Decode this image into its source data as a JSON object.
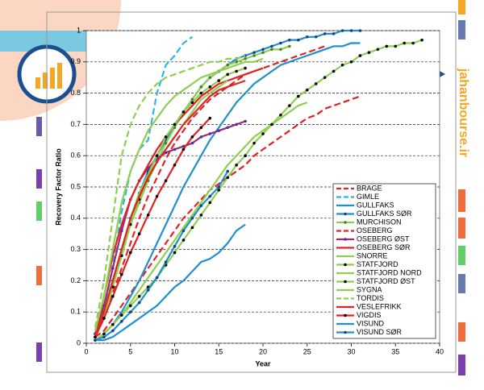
{
  "watermark": "jahanbourse.ir",
  "chart_data": {
    "type": "line",
    "x_label": "Year",
    "y_label": "Recovery Factor Ratio",
    "xlim": [
      0,
      40
    ],
    "xticks": [
      0,
      5,
      10,
      15,
      20,
      25,
      30,
      35,
      40
    ],
    "ylim": [
      0,
      1
    ],
    "yticks": [
      0,
      0.1,
      0.2,
      0.3,
      0.4,
      0.5,
      0.6,
      0.7,
      0.8,
      0.9,
      1
    ],
    "grid": true,
    "legend": "lower right",
    "x": [
      1,
      2,
      3,
      4,
      5,
      6,
      7,
      8,
      9,
      10,
      11,
      12,
      13,
      14,
      15,
      16,
      17,
      18,
      19,
      20,
      21,
      22,
      23,
      24,
      25,
      26,
      27,
      28,
      29,
      30,
      31,
      32,
      33,
      34,
      35,
      36,
      37,
      38
    ],
    "series": [
      {
        "name": "BRAGE",
        "color": "#e02424",
        "line_style": "dashed",
        "marker": false,
        "values": [
          0.02,
          0.04,
          0.08,
          0.12,
          0.16,
          0.2,
          0.24,
          0.28,
          0.32,
          0.36,
          0.4,
          0.43,
          0.46,
          0.49,
          0.51,
          0.53,
          0.55,
          0.57,
          0.6,
          0.62,
          0.64,
          0.66,
          0.68,
          0.7,
          0.72,
          0.73,
          0.75,
          0.76,
          0.77,
          0.78,
          0.79,
          null,
          null,
          null,
          null,
          null,
          null,
          null
        ]
      },
      {
        "name": "GIMLE",
        "color": "#2bb5e8",
        "line_style": "dashed",
        "marker": false,
        "values": [
          0.02,
          0.1,
          0.25,
          0.42,
          0.55,
          0.62,
          0.65,
          0.8,
          0.89,
          0.92,
          0.96,
          0.98,
          null,
          null,
          null,
          null,
          null,
          null,
          null,
          null,
          null,
          null,
          null,
          null,
          null,
          null,
          null,
          null,
          null,
          null,
          null,
          null,
          null,
          null,
          null,
          null,
          null,
          null
        ]
      },
      {
        "name": "GULLFAKS",
        "color": "#1e90d0",
        "line_style": "solid",
        "marker": false,
        "values": [
          0.01,
          0.03,
          0.06,
          0.1,
          0.15,
          0.2,
          0.26,
          0.32,
          0.38,
          0.44,
          0.5,
          0.55,
          0.6,
          0.65,
          0.69,
          0.73,
          0.77,
          0.8,
          0.83,
          0.85,
          0.87,
          0.89,
          0.9,
          0.91,
          0.92,
          0.93,
          0.94,
          0.95,
          0.95,
          0.96,
          0.96,
          null,
          null,
          null,
          null,
          null,
          null,
          null
        ]
      },
      {
        "name": "GULLFAKS SØR",
        "color": "#1e90d0",
        "line_style": "solid",
        "marker": true,
        "marker_color": "#1f3f7f",
        "values": [
          0.02,
          0.1,
          0.2,
          0.3,
          0.4,
          0.48,
          0.55,
          0.6,
          0.65,
          0.7,
          0.74,
          0.78,
          0.82,
          0.85,
          0.87,
          0.89,
          0.91,
          0.92,
          0.93,
          0.94,
          0.95,
          0.96,
          0.97,
          0.97,
          0.98,
          0.98,
          0.99,
          0.99,
          1,
          1,
          1,
          null,
          null,
          null,
          null,
          null,
          null,
          null
        ]
      },
      {
        "name": "MURCHISON",
        "color": "#8fce4f",
        "line_style": "solid",
        "marker": true,
        "marker_color": "#4f7f2f",
        "values": [
          0.03,
          0.1,
          0.2,
          0.3,
          0.38,
          0.45,
          0.52,
          0.58,
          0.64,
          0.69,
          0.74,
          0.78,
          0.82,
          0.85,
          0.87,
          0.89,
          0.9,
          0.91,
          0.92,
          0.93,
          0.94,
          0.94,
          0.95,
          null,
          null,
          null,
          null,
          null,
          null,
          null,
          null,
          null,
          null,
          null,
          null,
          null,
          null,
          null
        ]
      },
      {
        "name": "OSEBERG",
        "color": "#e02424",
        "line_style": "dashed",
        "marker": false,
        "values": [
          0.02,
          0.08,
          0.16,
          0.24,
          0.32,
          0.4,
          0.47,
          0.53,
          0.59,
          0.64,
          0.68,
          0.72,
          0.75,
          0.78,
          0.8,
          0.82,
          0.84,
          0.86,
          0.87,
          0.88,
          0.89,
          0.9,
          0.91,
          0.92,
          0.93,
          0.94,
          0.95,
          null,
          null,
          null,
          null,
          null,
          null,
          null,
          null,
          null,
          null,
          null
        ]
      },
      {
        "name": "OSEBERG ØST",
        "color": "#9b2a6e",
        "line_style": "solid",
        "marker": true,
        "marker_color": "#5a2ab0",
        "values": [
          0.03,
          0.12,
          0.24,
          0.36,
          0.46,
          0.52,
          0.56,
          0.59,
          0.61,
          0.62,
          0.63,
          0.64,
          0.66,
          0.67,
          0.68,
          0.69,
          0.7,
          0.71,
          null,
          null,
          null,
          null,
          null,
          null,
          null,
          null,
          null,
          null,
          null,
          null,
          null,
          null,
          null,
          null,
          null,
          null,
          null,
          null
        ]
      },
      {
        "name": "OSEBERG SØR",
        "color": "#e02424",
        "line_style": "solid",
        "marker": false,
        "values": [
          0.02,
          0.15,
          0.28,
          0.38,
          0.46,
          0.52,
          0.57,
          0.62,
          0.66,
          0.7,
          0.73,
          0.76,
          0.79,
          0.81,
          0.83,
          0.84,
          0.85,
          0.86,
          0.87,
          0.88,
          null,
          null,
          null,
          null,
          null,
          null,
          null,
          null,
          null,
          null,
          null,
          null,
          null,
          null,
          null,
          null,
          null,
          null
        ]
      },
      {
        "name": "SNORRE",
        "color": "#8fce4f",
        "line_style": "solid",
        "marker": false,
        "values": [
          0.01,
          0.03,
          0.06,
          0.09,
          0.13,
          0.17,
          0.21,
          0.25,
          0.29,
          0.33,
          0.37,
          0.41,
          0.45,
          0.49,
          0.53,
          0.57,
          0.6,
          0.63,
          0.66,
          0.68,
          0.7,
          0.72,
          0.74,
          0.76,
          0.77,
          null,
          null,
          null,
          null,
          null,
          null,
          null,
          null,
          null,
          null,
          null,
          null,
          null
        ]
      },
      {
        "name": "STATFJORD",
        "color": "#8fce4f",
        "line_style": "solid",
        "marker": true,
        "marker_color": "#000000",
        "values": [
          0.01,
          0.03,
          0.06,
          0.09,
          0.12,
          0.15,
          0.18,
          0.21,
          0.25,
          0.29,
          0.33,
          0.37,
          0.41,
          0.45,
          0.49,
          0.53,
          0.57,
          0.6,
          0.64,
          0.67,
          0.7,
          0.73,
          0.76,
          0.79,
          0.81,
          0.83,
          0.85,
          0.87,
          0.89,
          0.9,
          0.92,
          0.93,
          0.94,
          0.95,
          0.95,
          0.96,
          0.96,
          0.97
        ]
      },
      {
        "name": "STATFJORD NORD",
        "color": "#8fce4f",
        "line_style": "solid",
        "marker": false,
        "values": [
          0.04,
          0.15,
          0.3,
          0.45,
          0.55,
          0.62,
          0.68,
          0.72,
          0.76,
          0.79,
          0.81,
          0.83,
          0.85,
          0.86,
          0.87,
          0.88,
          0.89,
          0.9,
          0.9,
          0.91,
          null,
          null,
          null,
          null,
          null,
          null,
          null,
          null,
          null,
          null,
          null,
          null,
          null,
          null,
          null,
          null,
          null,
          null
        ]
      },
      {
        "name": "STATFJORD ØST",
        "color": "#8fce4f",
        "line_style": "solid",
        "marker": true,
        "marker_color": "#000000",
        "values": [
          0.02,
          0.08,
          0.18,
          0.28,
          0.38,
          0.46,
          0.54,
          0.6,
          0.66,
          0.7,
          0.74,
          0.77,
          0.8,
          0.82,
          0.84,
          0.86,
          0.87,
          0.88,
          null,
          null,
          null,
          null,
          null,
          null,
          null,
          null,
          null,
          null,
          null,
          null,
          null,
          null,
          null,
          null,
          null,
          null,
          null,
          null
        ]
      },
      {
        "name": "SYGNA",
        "color": "#8fce4f",
        "line_style": "solid",
        "marker": false,
        "values": [
          0.02,
          0.1,
          0.2,
          0.3,
          0.4,
          0.48,
          0.54,
          0.58,
          0.62,
          0.66,
          0.7,
          0.74,
          0.78,
          0.8,
          0.82,
          0.84,
          null,
          null,
          null,
          null,
          null,
          null,
          null,
          null,
          null,
          null,
          null,
          null,
          null,
          null,
          null,
          null,
          null,
          null,
          null,
          null,
          null,
          null
        ]
      },
      {
        "name": "TORDIS",
        "color": "#8fce4f",
        "line_style": "dashed",
        "marker": false,
        "values": [
          0.05,
          0.2,
          0.4,
          0.6,
          0.7,
          0.76,
          0.8,
          0.83,
          0.85,
          0.86,
          0.87,
          0.88,
          0.89,
          0.9,
          0.9,
          0.91,
          0.91,
          0.92,
          null,
          null,
          null,
          null,
          null,
          null,
          null,
          null,
          null,
          null,
          null,
          null,
          null,
          null,
          null,
          null,
          null,
          null,
          null,
          null
        ]
      },
      {
        "name": "VESLEFRIKK",
        "color": "#e02424",
        "line_style": "solid",
        "marker": false,
        "values": [
          0.02,
          0.1,
          0.2,
          0.3,
          0.4,
          0.47,
          0.53,
          0.58,
          0.62,
          0.66,
          0.7,
          0.73,
          0.76,
          0.79,
          0.81,
          0.82,
          0.83,
          0.84,
          null,
          null,
          null,
          null,
          null,
          null,
          null,
          null,
          null,
          null,
          null,
          null,
          null,
          null,
          null,
          null,
          null,
          null,
          null,
          null
        ]
      },
      {
        "name": "VIGDIS",
        "color": "#e02424",
        "line_style": "solid",
        "marker": true,
        "marker_color": "#000000",
        "values": [
          0.02,
          0.08,
          0.15,
          0.22,
          0.29,
          0.35,
          0.41,
          0.47,
          0.52,
          0.57,
          0.62,
          0.66,
          0.69,
          0.72,
          null,
          null,
          null,
          null,
          null,
          null,
          null,
          null,
          null,
          null,
          null,
          null,
          null,
          null,
          null,
          null,
          null,
          null,
          null,
          null,
          null,
          null,
          null,
          null
        ]
      },
      {
        "name": "VISUND",
        "color": "#1e90d0",
        "line_style": "solid",
        "marker": false,
        "values": [
          0.01,
          0.01,
          0.02,
          0.04,
          0.06,
          0.08,
          0.1,
          0.12,
          0.15,
          0.18,
          0.2,
          0.23,
          0.26,
          0.27,
          0.29,
          0.32,
          0.36,
          0.38,
          null,
          null,
          null,
          null,
          null,
          null,
          null,
          null,
          null,
          null,
          null,
          null,
          null,
          null,
          null,
          null,
          null,
          null,
          null,
          null
        ]
      },
      {
        "name": "VISUND SØR",
        "color": "#1e90d0",
        "line_style": "solid",
        "marker": true,
        "marker_color": "#1f3f7f",
        "values": [
          0.01,
          0.02,
          0.04,
          0.07,
          0.1,
          0.13,
          0.17,
          0.21,
          0.26,
          0.31,
          0.36,
          0.4,
          0.44,
          0.47,
          0.5,
          0.55,
          null,
          null,
          null,
          null,
          null,
          null,
          null,
          null,
          null,
          null,
          null,
          null,
          null,
          null,
          null,
          null,
          null,
          null,
          null,
          null,
          null,
          null
        ]
      }
    ]
  }
}
